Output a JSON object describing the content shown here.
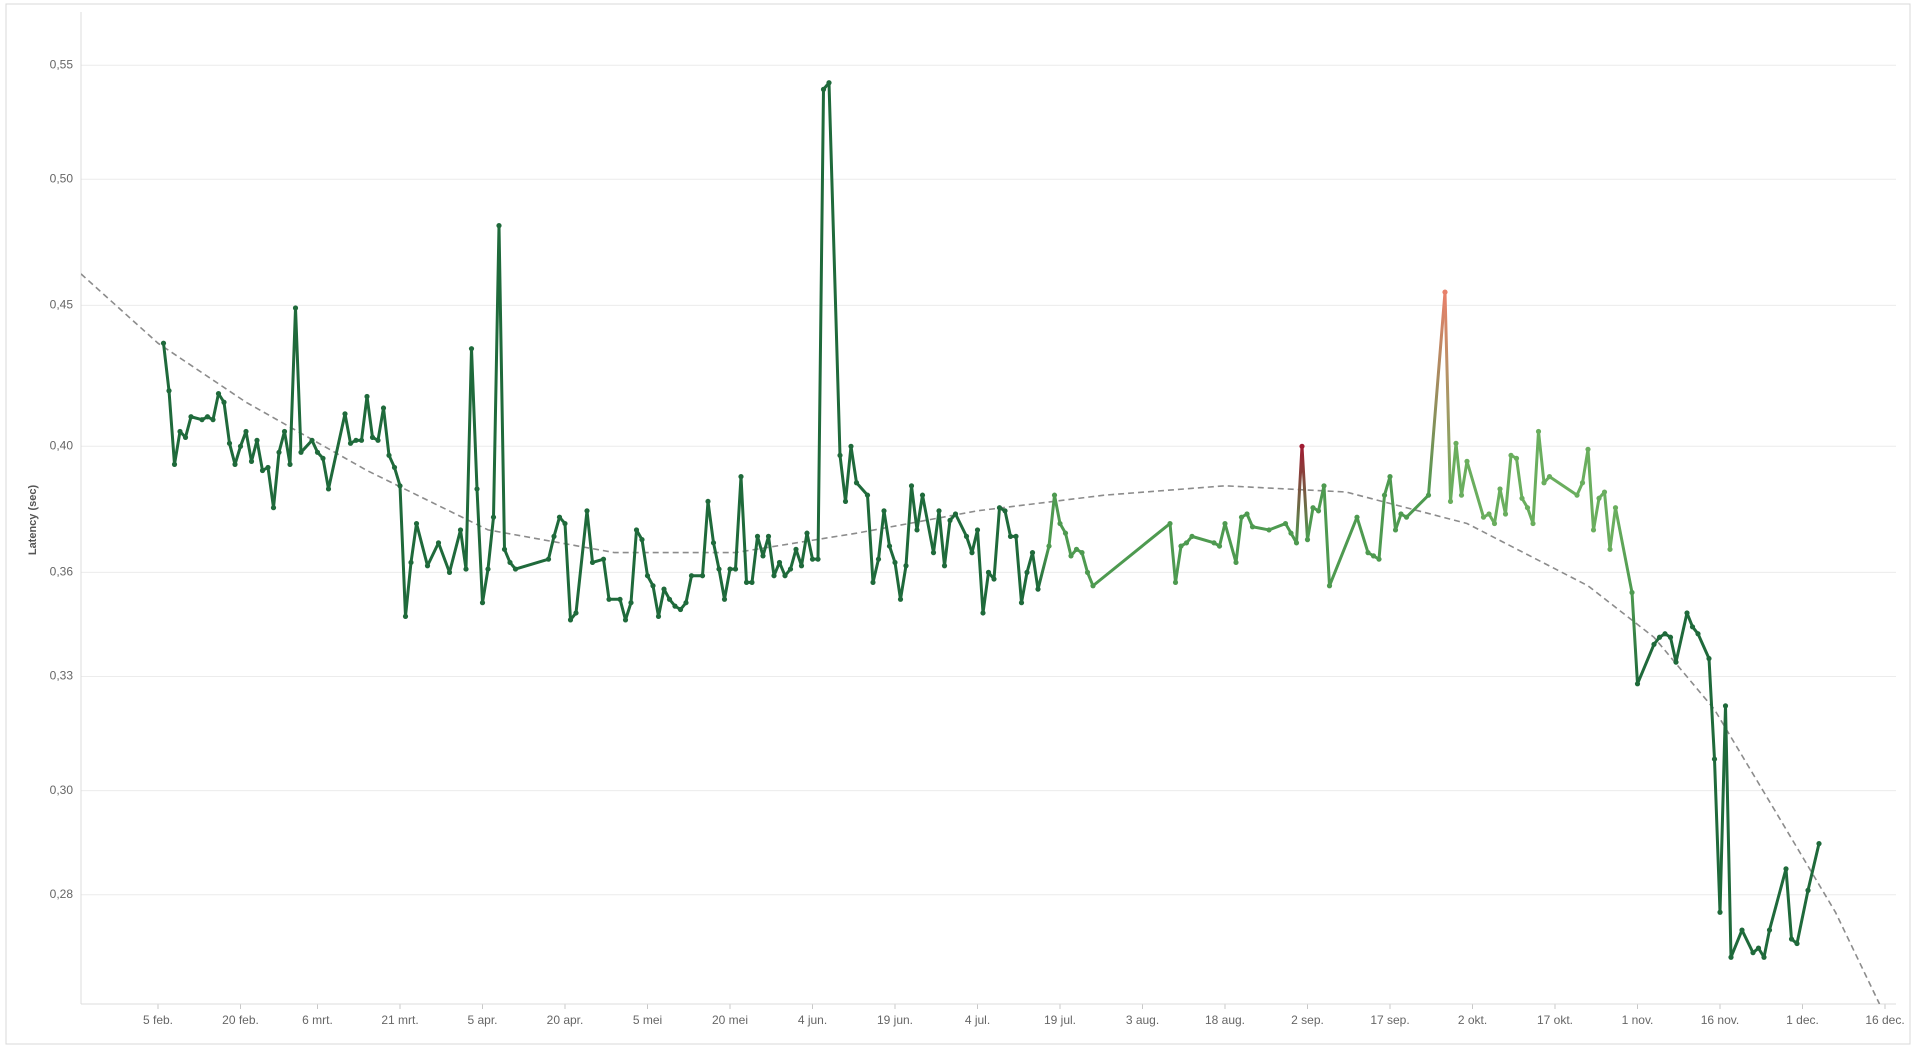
{
  "chart_data": {
    "type": "line",
    "y_label": "Latency (sec)",
    "log_y": true,
    "grid": true,
    "ylim": [
      0.251,
      0.575
    ],
    "yticks": [
      {
        "value": 0.275,
        "label": "0,28"
      },
      {
        "value": 0.3,
        "label": "0,30"
      },
      {
        "value": 0.33,
        "label": "0,33"
      },
      {
        "value": 0.36,
        "label": "0,36"
      },
      {
        "value": 0.4,
        "label": "0,40"
      },
      {
        "value": 0.45,
        "label": "0,45"
      },
      {
        "value": 0.5,
        "label": "0,50"
      },
      {
        "value": 0.55,
        "label": "0,55"
      }
    ],
    "xlim": [
      "01-22",
      "12-18"
    ],
    "xticks": [
      {
        "value": "02-05",
        "label": "5 feb."
      },
      {
        "value": "02-20",
        "label": "20 feb."
      },
      {
        "value": "03-06",
        "label": "6 mrt."
      },
      {
        "value": "03-21",
        "label": "21 mrt."
      },
      {
        "value": "04-05",
        "label": "5 apr."
      },
      {
        "value": "04-20",
        "label": "20 apr."
      },
      {
        "value": "05-05",
        "label": "5 mei"
      },
      {
        "value": "05-20",
        "label": "20 mei"
      },
      {
        "value": "06-04",
        "label": "4 jun."
      },
      {
        "value": "06-19",
        "label": "19 jun."
      },
      {
        "value": "07-04",
        "label": "4 jul."
      },
      {
        "value": "07-19",
        "label": "19 jul."
      },
      {
        "value": "08-03",
        "label": "3 aug."
      },
      {
        "value": "08-18",
        "label": "18 aug."
      },
      {
        "value": "09-02",
        "label": "2 sep."
      },
      {
        "value": "09-17",
        "label": "17 sep."
      },
      {
        "value": "10-02",
        "label": "2 okt."
      },
      {
        "value": "10-17",
        "label": "17 okt."
      },
      {
        "value": "11-01",
        "label": "1 nov."
      },
      {
        "value": "11-16",
        "label": "16 nov."
      },
      {
        "value": "12-01",
        "label": "1 dec."
      },
      {
        "value": "12-16",
        "label": "16 dec."
      }
    ],
    "x": [
      "02-06",
      "02-07",
      "02-08",
      "02-09",
      "02-10",
      "02-11",
      "02-13",
      "02-14",
      "02-15",
      "02-16",
      "02-17",
      "02-18",
      "02-19",
      "02-20",
      "02-21",
      "02-22",
      "02-23",
      "02-24",
      "02-25",
      "02-26",
      "02-27",
      "02-28",
      "03-01",
      "03-02",
      "03-03",
      "03-05",
      "03-06",
      "03-07",
      "03-08",
      "03-11",
      "03-12",
      "03-13",
      "03-14",
      "03-15",
      "03-16",
      "03-17",
      "03-18",
      "03-19",
      "03-20",
      "03-21",
      "03-22",
      "03-23",
      "03-24",
      "03-26",
      "03-28",
      "03-30",
      "04-01",
      "04-02",
      "04-03",
      "04-04",
      "04-05",
      "04-06",
      "04-07",
      "04-08",
      "04-09",
      "04-10",
      "04-11",
      "04-17",
      "04-18",
      "04-19",
      "04-20",
      "04-21",
      "04-22",
      "04-24",
      "04-25",
      "04-27",
      "04-28",
      "04-30",
      "05-01",
      "05-02",
      "05-03",
      "05-04",
      "05-05",
      "05-06",
      "05-07",
      "05-08",
      "05-09",
      "05-10",
      "05-11",
      "05-12",
      "05-13",
      "05-15",
      "05-16",
      "05-17",
      "05-18",
      "05-19",
      "05-20",
      "05-21",
      "05-22",
      "05-23",
      "05-24",
      "05-25",
      "05-26",
      "05-27",
      "05-28",
      "05-29",
      "05-30",
      "05-31",
      "06-01",
      "06-02",
      "06-03",
      "06-04",
      "06-05",
      "06-06",
      "06-07",
      "06-09",
      "06-10",
      "06-11",
      "06-12",
      "06-14",
      "06-15",
      "06-16",
      "06-17",
      "06-18",
      "06-19",
      "06-20",
      "06-21",
      "06-22",
      "06-23",
      "06-24",
      "06-26",
      "06-27",
      "06-28",
      "06-29",
      "06-30",
      "07-02",
      "07-03",
      "07-04",
      "07-05",
      "07-06",
      "07-07",
      "07-08",
      "07-09",
      "07-10",
      "07-11",
      "07-12",
      "07-13",
      "07-14",
      "07-15",
      "07-17",
      "07-18",
      "07-19",
      "07-20",
      "07-21",
      "07-22",
      "07-23",
      "07-24",
      "07-25",
      "08-08",
      "08-09",
      "08-10",
      "08-11",
      "08-12",
      "08-16",
      "08-17",
      "08-18",
      "08-20",
      "08-21",
      "08-22",
      "08-23",
      "08-26",
      "08-29",
      "08-30",
      "08-31",
      "09-01",
      "09-02",
      "09-03",
      "09-04",
      "09-05",
      "09-06",
      "09-11",
      "09-13",
      "09-14",
      "09-15",
      "09-16",
      "09-17",
      "09-18",
      "09-19",
      "09-20",
      "09-24",
      "09-27",
      "09-28",
      "09-29",
      "09-30",
      "10-01",
      "10-04",
      "10-05",
      "10-06",
      "10-07",
      "10-08",
      "10-09",
      "10-10",
      "10-11",
      "10-12",
      "10-13",
      "10-14",
      "10-15",
      "10-16",
      "10-21",
      "10-22",
      "10-23",
      "10-24",
      "10-25",
      "10-26",
      "10-27",
      "10-28",
      "10-31",
      "11-01",
      "11-04",
      "11-05",
      "11-06",
      "11-07",
      "11-08",
      "11-10",
      "11-11",
      "11-12",
      "11-14",
      "11-15",
      "11-16",
      "11-17",
      "11-18",
      "11-20",
      "11-22",
      "11-23",
      "11-24",
      "11-25",
      "11-28",
      "11-29",
      "11-30",
      "12-02",
      "12-04"
    ],
    "values": [
      0.436,
      0.419,
      0.394,
      0.405,
      0.403,
      0.41,
      0.409,
      0.41,
      0.409,
      0.418,
      0.415,
      0.401,
      0.394,
      0.4,
      0.405,
      0.395,
      0.402,
      0.392,
      0.393,
      0.38,
      0.398,
      0.405,
      0.394,
      0.449,
      0.398,
      0.402,
      0.398,
      0.396,
      0.386,
      0.411,
      0.401,
      0.402,
      0.402,
      0.417,
      0.403,
      0.402,
      0.413,
      0.397,
      0.393,
      0.387,
      0.347,
      0.363,
      0.375,
      0.362,
      0.369,
      0.36,
      0.373,
      0.361,
      0.434,
      0.386,
      0.351,
      0.361,
      0.377,
      0.481,
      0.367,
      0.363,
      0.361,
      0.364,
      0.371,
      0.377,
      0.375,
      0.346,
      0.348,
      0.379,
      0.363,
      0.364,
      0.352,
      0.352,
      0.346,
      0.351,
      0.373,
      0.37,
      0.359,
      0.356,
      0.347,
      0.355,
      0.352,
      0.35,
      0.349,
      0.351,
      0.359,
      0.359,
      0.382,
      0.369,
      0.361,
      0.352,
      0.361,
      0.361,
      0.39,
      0.357,
      0.357,
      0.371,
      0.365,
      0.371,
      0.359,
      0.363,
      0.359,
      0.361,
      0.367,
      0.362,
      0.372,
      0.364,
      0.364,
      0.539,
      0.542,
      0.397,
      0.382,
      0.4,
      0.388,
      0.384,
      0.357,
      0.364,
      0.379,
      0.368,
      0.363,
      0.352,
      0.362,
      0.387,
      0.373,
      0.384,
      0.366,
      0.379,
      0.362,
      0.376,
      0.378,
      0.371,
      0.366,
      0.373,
      0.348,
      0.36,
      0.358,
      0.38,
      0.379,
      0.371,
      0.371,
      0.351,
      0.36,
      0.366,
      0.355,
      0.368,
      0.384,
      0.375,
      0.372,
      0.365,
      0.367,
      0.366,
      0.36,
      0.356,
      0.375,
      0.357,
      0.368,
      0.369,
      0.371,
      0.369,
      0.368,
      0.375,
      0.363,
      0.377,
      0.378,
      0.374,
      0.373,
      0.375,
      0.372,
      0.369,
      0.4,
      0.37,
      0.38,
      0.379,
      0.387,
      0.356,
      0.377,
      0.366,
      0.365,
      0.364,
      0.384,
      0.39,
      0.373,
      0.378,
      0.377,
      0.384,
      0.455,
      0.382,
      0.401,
      0.384,
      0.395,
      0.377,
      0.378,
      0.375,
      0.386,
      0.378,
      0.397,
      0.396,
      0.383,
      0.38,
      0.375,
      0.405,
      0.388,
      0.39,
      0.384,
      0.388,
      0.399,
      0.373,
      0.383,
      0.385,
      0.367,
      0.38,
      0.354,
      0.328,
      0.339,
      0.341,
      0.342,
      0.341,
      0.334,
      0.348,
      0.344,
      0.342,
      0.335,
      0.308,
      0.271,
      0.322,
      0.261,
      0.267,
      0.262,
      0.263,
      0.261,
      0.267,
      0.281,
      0.265,
      0.264,
      0.276,
      0.287
    ],
    "colors": [
      "#1f6a3b",
      "#1f6a3b",
      "#1f6a3b",
      "#1f6a3b",
      "#1f6a3b",
      "#1f6a3b",
      "#1f6a3b",
      "#1f6a3b",
      "#1f6a3b",
      "#1f6a3b",
      "#1f6a3b",
      "#1f6a3b",
      "#1f6a3b",
      "#1f6a3b",
      "#1f6a3b",
      "#1f6a3b",
      "#1f6a3b",
      "#1f6a3b",
      "#1f6a3b",
      "#1f6a3b",
      "#1f6a3b",
      "#1f6a3b",
      "#1f6a3b",
      "#1f6a3b",
      "#1f6a3b",
      "#1f6a3b",
      "#1f6a3b",
      "#1f6a3b",
      "#1f6a3b",
      "#1f6a3b",
      "#1f6a3b",
      "#1f6a3b",
      "#1f6a3b",
      "#1f6a3b",
      "#1f6a3b",
      "#1f6a3b",
      "#1f6a3b",
      "#1f6a3b",
      "#1f6a3b",
      "#1f6a3b",
      "#1f6a3b",
      "#1f6a3b",
      "#1f6a3b",
      "#1f6a3b",
      "#1f6a3b",
      "#1f6a3b",
      "#1f6a3b",
      "#1f6a3b",
      "#1f6a3b",
      "#1f6a3b",
      "#1f6a3b",
      "#1f6a3b",
      "#1f6a3b",
      "#1f6a3b",
      "#1f6a3b",
      "#1f6a3b",
      "#1f6a3b",
      "#1f6a3b",
      "#1f6a3b",
      "#1f6a3b",
      "#1f6a3b",
      "#1f6a3b",
      "#1f6a3b",
      "#1f6a3b",
      "#1f6a3b",
      "#1f6a3b",
      "#1f6a3b",
      "#1f6a3b",
      "#1f6a3b",
      "#1f6a3b",
      "#1f6a3b",
      "#1f6a3b",
      "#1f6a3b",
      "#1f6a3b",
      "#1f6a3b",
      "#1f6a3b",
      "#1f6a3b",
      "#1f6a3b",
      "#1f6a3b",
      "#1f6a3b",
      "#1f6a3b",
      "#1f6a3b",
      "#1f6a3b",
      "#1f6a3b",
      "#1f6a3b",
      "#1f6a3b",
      "#1f6a3b",
      "#1f6a3b",
      "#1f6a3b",
      "#1f6a3b",
      "#1f6a3b",
      "#1f6a3b",
      "#1f6a3b",
      "#1f6a3b",
      "#1f6a3b",
      "#1f6a3b",
      "#1f6a3b",
      "#1f6a3b",
      "#1f6a3b",
      "#1f6a3b",
      "#1f6a3b",
      "#1f6a3b",
      "#1f6a3b",
      "#1f6a3b",
      "#1f6a3b",
      "#1f6a3b",
      "#1f6a3b",
      "#1f6a3b",
      "#1f6a3b",
      "#1f6a3b",
      "#1f6a3b",
      "#1f6a3b",
      "#1f6a3b",
      "#1f6a3b",
      "#1f6a3b",
      "#1f6a3b",
      "#1f6a3b",
      "#1f6a3b",
      "#1f6a3b",
      "#1f6a3b",
      "#1f6a3b",
      "#1f6a3b",
      "#1f6a3b",
      "#1f6a3b",
      "#1f6a3b",
      "#1f6a3b",
      "#1f6a3b",
      "#1f6a3b",
      "#1f6a3b",
      "#1f6a3b",
      "#1f6a3b",
      "#1f6a3b",
      "#1f6a3b",
      "#1f6a3b",
      "#1f6a3b",
      "#1f6a3b",
      "#1f6a3b",
      "#1f6a3b",
      "#1f6a3b",
      "#4e9a50",
      "#4e9a50",
      "#4e9a50",
      "#4e9a50",
      "#4e9a50",
      "#4e9a50",
      "#4e9a50",
      "#4e9a50",
      "#4e9a50",
      "#4e9a50",
      "#4e9a50",
      "#4e9a50",
      "#4e9a50",
      "#4e9a50",
      "#4e9a50",
      "#4e9a50",
      "#4e9a50",
      "#4e9a50",
      "#4e9a50",
      "#4e9a50",
      "#4e9a50",
      "#4e9a50",
      "#4e9a50",
      "#4e9a50",
      "#4e9a50",
      "#a01c32",
      "#4e9a50",
      "#4e9a50",
      "#4e9a50",
      "#4e9a50",
      "#4e9a50",
      "#4e9a50",
      "#4e9a50",
      "#4e9a50",
      "#4e9a50",
      "#4e9a50",
      "#4e9a50",
      "#4e9a50",
      "#4e9a50",
      "#4e9a50",
      "#4e9a50",
      "#e8806a",
      "#6aae5e",
      "#6aae5e",
      "#6aae5e",
      "#6aae5e",
      "#6aae5e",
      "#6aae5e",
      "#6aae5e",
      "#6aae5e",
      "#6aae5e",
      "#6aae5e",
      "#6aae5e",
      "#6aae5e",
      "#6aae5e",
      "#6aae5e",
      "#6aae5e",
      "#6aae5e",
      "#6aae5e",
      "#6aae5e",
      "#6aae5e",
      "#6aae5e",
      "#6aae5e",
      "#6aae5e",
      "#6aae5e",
      "#6aae5e",
      "#6aae5e",
      "#4e9a50",
      "#1f6a3b",
      "#1f6a3b",
      "#1f6a3b",
      "#1f6a3b",
      "#1f6a3b",
      "#1f6a3b",
      "#1f6a3b",
      "#1f6a3b",
      "#1f6a3b",
      "#1f6a3b",
      "#1f6a3b",
      "#1f6a3b",
      "#1f6a3b",
      "#1f6a3b",
      "#1f6a3b",
      "#1f6a3b",
      "#1f6a3b",
      "#1f6a3b",
      "#1f6a3b",
      "#1f6a3b",
      "#1f6a3b",
      "#1f6a3b",
      "#1f6a3b",
      "#1f6a3b"
    ],
    "trend": {
      "color": "#8c8c8c",
      "x": [
        "01-22",
        "02-05",
        "02-21",
        "03-15",
        "04-06",
        "04-29",
        "05-21",
        "06-12",
        "07-04",
        "07-27",
        "08-18",
        "09-09",
        "10-01",
        "10-23",
        "11-04",
        "11-15",
        "11-26",
        "12-07",
        "12-15"
      ],
      "values": [
        0.462,
        0.436,
        0.415,
        0.392,
        0.373,
        0.366,
        0.366,
        0.372,
        0.379,
        0.384,
        0.387,
        0.385,
        0.375,
        0.356,
        0.341,
        0.321,
        0.295,
        0.271,
        0.251
      ]
    }
  }
}
